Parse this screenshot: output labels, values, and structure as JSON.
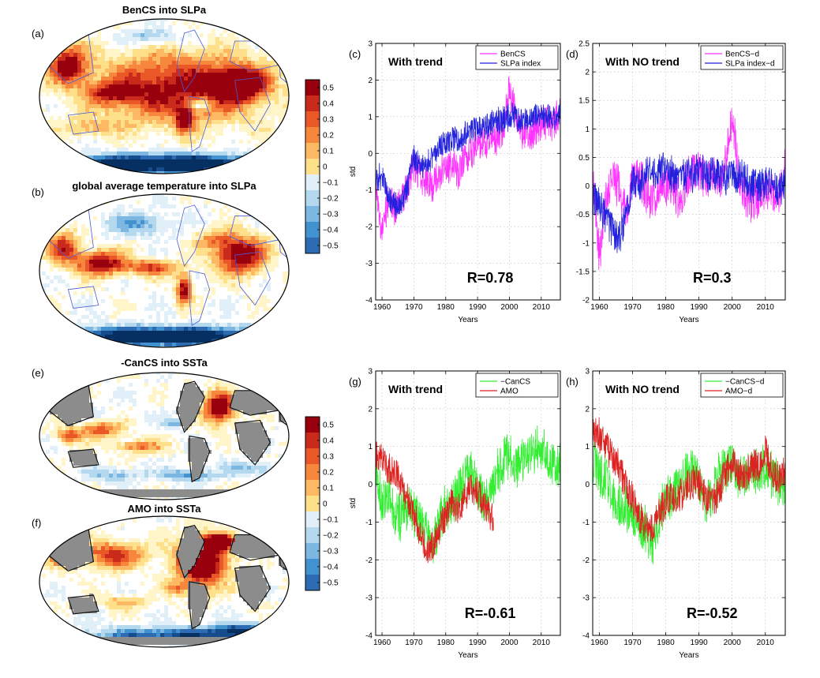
{
  "colors": {
    "sat": [
      "#053061",
      "#174c8c",
      "#2d6cb2",
      "#4392d0",
      "#7bb7e0",
      "#b4d9ef",
      "#e1f0f8",
      "#ffffff",
      "#fff5c8",
      "#fee08b",
      "#fdb863",
      "#f7873c",
      "#e95826",
      "#c92a1b",
      "#99000d"
    ],
    "land": "#8c8c8c",
    "coast": "#4a5ad8",
    "benCS": "#ff33ff",
    "slpa": "#2222dd",
    "cancs": "#33ee33",
    "amo": "#dd2222"
  },
  "maps": [
    {
      "id": "a",
      "label": "(a)",
      "title": "BenCS into SLPa"
    },
    {
      "id": "b",
      "label": "(b)",
      "title": "global average temperature into SLPa"
    },
    {
      "id": "e",
      "label": "(e)",
      "title": "-CanCS into SSTa"
    },
    {
      "id": "f",
      "label": "(f)",
      "title": "AMO into SSTa"
    }
  ],
  "colorbar_ticks": [
    "0.5",
    "0.4",
    "0.3",
    "0.2",
    "0.1",
    "0",
    "−0.1",
    "−0.2",
    "−0.3",
    "−0.4",
    "−0.5"
  ],
  "chart_data": [
    {
      "id": "c",
      "type": "line",
      "label": "(c)",
      "text": "With trend",
      "annotation": "R=0.78",
      "xlabel": "Years",
      "ylabel": "std",
      "xlim": [
        1958,
        2016
      ],
      "ylim": [
        -4,
        3
      ],
      "xticks": [
        1960,
        1970,
        1980,
        1990,
        2000,
        2010
      ],
      "yticks": [
        -4,
        -3,
        -2,
        -1,
        0,
        1,
        2,
        3
      ],
      "grid": true,
      "legend_position": "top-right",
      "series": [
        {
          "name": "BenCS",
          "color": "#ff33ff",
          "x_start": 1958,
          "x_end": 2016,
          "x": [
            1958,
            1960,
            1962,
            1964,
            1966,
            1968,
            1970,
            1972,
            1974,
            1976,
            1978,
            1980,
            1982,
            1984,
            1986,
            1988,
            1990,
            1992,
            1994,
            1996,
            1998,
            2000,
            2002,
            2004,
            2006,
            2008,
            2010,
            2012,
            2014,
            2016
          ],
          "y": [
            -0.8,
            -2.2,
            -1.2,
            -1.5,
            -1.3,
            -0.9,
            -0.3,
            -0.6,
            -0.8,
            -0.9,
            -0.5,
            -0.4,
            -0.3,
            -0.5,
            -0.1,
            0.0,
            0.2,
            0.3,
            0.3,
            0.4,
            0.6,
            1.8,
            1.0,
            0.6,
            0.5,
            0.6,
            0.8,
            0.9,
            0.8,
            1.2
          ],
          "noise": 0.45
        },
        {
          "name": "SLPa index",
          "color": "#2222dd",
          "x_start": 1958,
          "x_end": 2016,
          "x": [
            1958,
            1960,
            1962,
            1964,
            1966,
            1968,
            1970,
            1972,
            1974,
            1976,
            1978,
            1980,
            1982,
            1984,
            1986,
            1988,
            1990,
            1992,
            1994,
            1996,
            1998,
            2000,
            2002,
            2004,
            2006,
            2008,
            2010,
            2012,
            2014,
            2016
          ],
          "y": [
            -0.7,
            -0.6,
            -1.2,
            -1.4,
            -1.5,
            -0.9,
            -0.1,
            -0.4,
            -0.3,
            -0.1,
            0.2,
            0.3,
            0.4,
            0.3,
            0.5,
            0.6,
            0.7,
            0.7,
            0.8,
            0.9,
            0.9,
            1.0,
            1.0,
            0.9,
            0.9,
            1.0,
            1.0,
            1.0,
            0.9,
            1.2
          ],
          "noise": 0.35
        }
      ]
    },
    {
      "id": "d",
      "type": "line",
      "label": "(d)",
      "text": "With NO trend",
      "annotation": "R=0.3",
      "xlabel": "Years",
      "ylabel": "",
      "xlim": [
        1958,
        2016
      ],
      "ylim": [
        -2,
        2.5
      ],
      "xticks": [
        1960,
        1970,
        1980,
        1990,
        2000,
        2010
      ],
      "yticks": [
        -2,
        -1.5,
        -1,
        -0.5,
        0,
        0.5,
        1,
        1.5,
        2,
        2.5
      ],
      "grid": true,
      "legend_position": "top-right",
      "series": [
        {
          "name": "BenCS−d",
          "color": "#ff33ff",
          "x_start": 1958,
          "x_end": 2016,
          "x": [
            1958,
            1960,
            1962,
            1964,
            1966,
            1968,
            1970,
            1972,
            1974,
            1976,
            1978,
            1980,
            1982,
            1984,
            1986,
            1988,
            1990,
            1992,
            1994,
            1996,
            1998,
            2000,
            2002,
            2004,
            2006,
            2008,
            2010,
            2012,
            2014,
            2016
          ],
          "y": [
            0.2,
            -1.3,
            -0.2,
            0.1,
            0.0,
            -0.5,
            0.1,
            0.2,
            -0.1,
            -0.3,
            0.0,
            0.0,
            0.1,
            -0.3,
            0.1,
            0.2,
            0.3,
            0.1,
            0.2,
            0.0,
            0.4,
            1.3,
            0.2,
            -0.2,
            -0.3,
            -0.2,
            0.0,
            -0.1,
            -0.2,
            0.3
          ],
          "noise": 0.35
        },
        {
          "name": "SLPa index−d",
          "color": "#2222dd",
          "x_start": 1958,
          "x_end": 2016,
          "x": [
            1958,
            1960,
            1962,
            1964,
            1966,
            1968,
            1970,
            1972,
            1974,
            1976,
            1978,
            1980,
            1982,
            1984,
            1986,
            1988,
            1990,
            1992,
            1994,
            1996,
            1998,
            2000,
            2002,
            2004,
            2006,
            2008,
            2010,
            2012,
            2014,
            2016
          ],
          "y": [
            -0.2,
            -0.3,
            -0.6,
            -0.8,
            -0.9,
            -0.5,
            0.1,
            0.0,
            0.2,
            0.2,
            0.3,
            0.3,
            0.2,
            0.1,
            0.2,
            0.2,
            0.3,
            0.2,
            0.2,
            0.2,
            0.1,
            0.2,
            0.2,
            0.1,
            0.0,
            0.0,
            0.0,
            0.0,
            -0.1,
            0.1
          ],
          "noise": 0.3
        }
      ]
    },
    {
      "id": "g",
      "type": "line",
      "label": "(g)",
      "text": "With trend",
      "annotation": "R=-0.61",
      "xlabel": "Years",
      "ylabel": "std",
      "xlim": [
        1958,
        2016
      ],
      "ylim": [
        -4,
        3
      ],
      "xticks": [
        1960,
        1970,
        1980,
        1990,
        2000,
        2010
      ],
      "yticks": [
        -4,
        -3,
        -2,
        -1,
        0,
        1,
        2,
        3
      ],
      "grid": true,
      "legend_position": "top-right",
      "series": [
        {
          "name": "−CanCS",
          "color": "#33ee33",
          "x_start": 1958,
          "x_end": 2016,
          "x": [
            1958,
            1960,
            1962,
            1964,
            1966,
            1968,
            1970,
            1972,
            1974,
            1976,
            1978,
            1980,
            1982,
            1984,
            1986,
            1988,
            1990,
            1992,
            1994,
            1996,
            1998,
            2000,
            2002,
            2004,
            2006,
            2008,
            2010,
            2012,
            2014,
            2016
          ],
          "y": [
            0.3,
            -0.5,
            -0.3,
            -0.8,
            -0.9,
            -0.6,
            -0.8,
            -1.0,
            -1.2,
            -1.8,
            -1.0,
            -0.6,
            -0.5,
            -0.2,
            0.1,
            0.3,
            0.0,
            -0.5,
            -0.2,
            0.3,
            0.6,
            0.8,
            0.5,
            0.6,
            0.8,
            0.9,
            1.0,
            0.7,
            0.6,
            0.5
          ],
          "noise": 0.6
        },
        {
          "name": "AMO",
          "color": "#dd2222",
          "x_start": 1958,
          "x_end": 1995,
          "x": [
            1958,
            1960,
            1962,
            1964,
            1966,
            1968,
            1970,
            1972,
            1974,
            1976,
            1978,
            1980,
            1982,
            1984,
            1986,
            1988,
            1990,
            1992,
            1994,
            1995
          ],
          "y": [
            0.8,
            0.7,
            0.4,
            0.3,
            0.0,
            -0.4,
            -0.8,
            -1.3,
            -1.8,
            -1.6,
            -1.2,
            -0.8,
            -0.5,
            -0.7,
            -0.3,
            -0.1,
            -0.2,
            -0.6,
            -0.8,
            -0.9
          ],
          "noise": 0.4
        }
      ]
    },
    {
      "id": "h",
      "type": "line",
      "label": "(h)",
      "text": "With NO trend",
      "annotation": "R=-0.52",
      "xlabel": "Years",
      "ylabel": "",
      "xlim": [
        1958,
        2016
      ],
      "ylim": [
        -4,
        3
      ],
      "xticks": [
        1960,
        1970,
        1980,
        1990,
        2000,
        2010
      ],
      "yticks": [
        -4,
        -3,
        -2,
        -1,
        0,
        1,
        2,
        3
      ],
      "grid": true,
      "legend_position": "top-right",
      "series": [
        {
          "name": "−CanCS−d",
          "color": "#33ee33",
          "x_start": 1958,
          "x_end": 2016,
          "x": [
            1958,
            1960,
            1962,
            1964,
            1966,
            1968,
            1970,
            1972,
            1974,
            1976,
            1978,
            1980,
            1982,
            1984,
            1986,
            1988,
            1990,
            1992,
            1994,
            1996,
            1998,
            2000,
            2002,
            2004,
            2006,
            2008,
            2010,
            2012,
            2014,
            2016
          ],
          "y": [
            0.6,
            0.3,
            0.1,
            -0.3,
            -0.5,
            -0.6,
            -0.9,
            -1.0,
            -1.2,
            -1.6,
            -0.9,
            -0.4,
            -0.3,
            0.0,
            0.2,
            0.4,
            0.1,
            -0.5,
            -0.3,
            0.2,
            0.4,
            0.5,
            0.2,
            0.3,
            0.4,
            0.4,
            0.5,
            0.2,
            0.0,
            0.0
          ],
          "noise": 0.6
        },
        {
          "name": "AMO−d",
          "color": "#dd2222",
          "x_start": 1958,
          "x_end": 2016,
          "x": [
            1958,
            1960,
            1962,
            1964,
            1966,
            1968,
            1970,
            1972,
            1974,
            1976,
            1978,
            1980,
            1982,
            1984,
            1986,
            1988,
            1990,
            1992,
            1994,
            1996,
            1998,
            2000,
            2002,
            2004,
            2006,
            2008,
            2010,
            2012,
            2014,
            2016
          ],
          "y": [
            1.5,
            1.3,
            1.0,
            0.7,
            0.4,
            0.0,
            -0.4,
            -0.8,
            -1.2,
            -1.1,
            -0.8,
            -0.5,
            -0.3,
            -0.4,
            -0.1,
            0.1,
            0.0,
            -0.3,
            -0.5,
            -0.2,
            0.3,
            0.6,
            0.3,
            0.2,
            0.5,
            0.4,
            0.8,
            0.3,
            0.1,
            0.4
          ],
          "noise": 0.45
        }
      ]
    }
  ]
}
